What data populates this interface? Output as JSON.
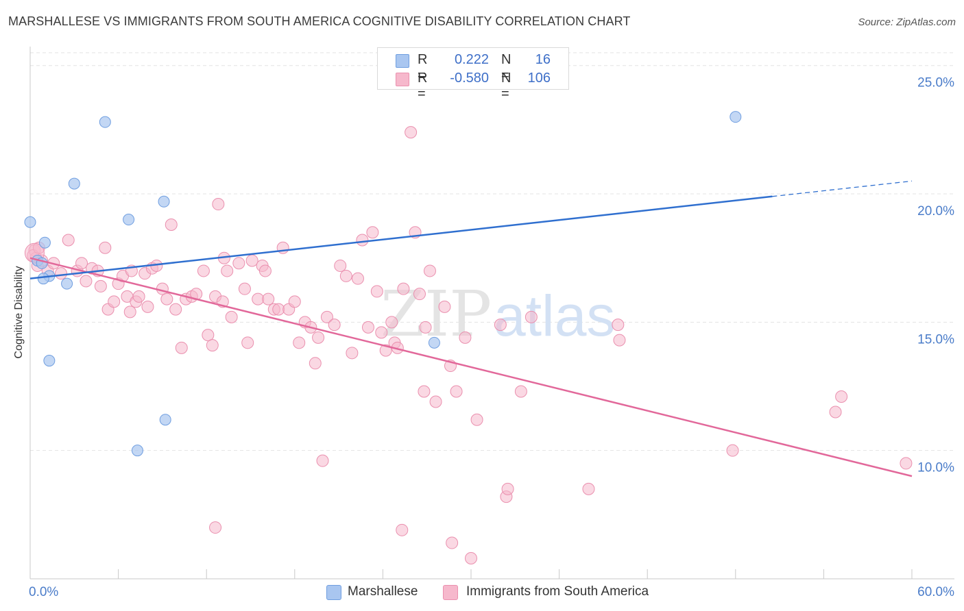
{
  "title": "MARSHALLESE VS IMMIGRANTS FROM SOUTH AMERICA COGNITIVE DISABILITY CORRELATION CHART",
  "source": "Source: ZipAtlas.com",
  "watermark": {
    "part1": "ZIP",
    "part2": "atlas"
  },
  "colors": {
    "blue_fill": "#a9c6f0",
    "blue_stroke": "#6f9ee0",
    "blue_line": "#2f6fcf",
    "pink_fill": "#f6b8cc",
    "pink_stroke": "#ea8fae",
    "pink_line": "#e2689a",
    "axis_text": "#4a7cc9",
    "grid": "#e3e3e3"
  },
  "stats": {
    "r_label": "R =",
    "n_label": "N =",
    "rows": [
      {
        "series": "Marshallese",
        "r": "0.222",
        "n": "16"
      },
      {
        "series": "Immigrants from South America",
        "r": "-0.580",
        "n": "106"
      }
    ]
  },
  "legend": [
    "Marshallese",
    "Immigrants from South America"
  ],
  "chart_data": {
    "type": "scatter",
    "title": "MARSHALLESE VS IMMIGRANTS FROM SOUTH AMERICA COGNITIVE DISABILITY CORRELATION CHART",
    "xlabel": "",
    "ylabel": "Cognitive Disability",
    "xlim": [
      0,
      60
    ],
    "ylim": [
      5,
      25.5
    ],
    "x_tick_labels": [
      {
        "value": 0,
        "label": "0.0%"
      },
      {
        "value": 60,
        "label": "60.0%"
      }
    ],
    "y_tick_labels": [
      {
        "value": 10,
        "label": "10.0%"
      },
      {
        "value": 15,
        "label": "15.0%"
      },
      {
        "value": 20,
        "label": "20.0%"
      },
      {
        "value": 25,
        "label": "25.0%"
      }
    ],
    "x_minor_ticks": [
      6,
      12,
      18,
      24,
      30,
      36,
      42,
      48,
      54
    ],
    "grid": true,
    "series": [
      {
        "name": "Marshallese",
        "points": [
          [
            0.0,
            18.9
          ],
          [
            0.5,
            17.4
          ],
          [
            1.0,
            18.1
          ],
          [
            0.8,
            17.3
          ],
          [
            1.3,
            16.8
          ],
          [
            0.9,
            16.7
          ],
          [
            2.5,
            16.5
          ],
          [
            5.1,
            22.8
          ],
          [
            3.0,
            20.4
          ],
          [
            9.1,
            19.7
          ],
          [
            6.7,
            19.0
          ],
          [
            1.3,
            13.5
          ],
          [
            9.2,
            11.2
          ],
          [
            7.3,
            10.0
          ],
          [
            27.5,
            14.2
          ],
          [
            48.0,
            23.0
          ]
        ],
        "trend": {
          "x": [
            0,
            50.5
          ],
          "y": [
            16.7,
            19.9
          ]
        },
        "trend_dashed": {
          "x": [
            50.5,
            60
          ],
          "y": [
            19.9,
            20.5
          ]
        }
      },
      {
        "name": "Immigrants from South America",
        "points": [
          [
            0.3,
            17.8
          ],
          [
            0.4,
            17.5
          ],
          [
            0.5,
            17.2
          ],
          [
            0.8,
            17.4
          ],
          [
            1.2,
            17.0
          ],
          [
            1.6,
            17.3
          ],
          [
            2.1,
            16.9
          ],
          [
            2.6,
            18.2
          ],
          [
            3.2,
            17.0
          ],
          [
            3.5,
            17.3
          ],
          [
            3.8,
            16.6
          ],
          [
            4.2,
            17.1
          ],
          [
            4.6,
            17.0
          ],
          [
            4.8,
            16.4
          ],
          [
            5.1,
            17.9
          ],
          [
            5.3,
            15.5
          ],
          [
            5.7,
            15.8
          ],
          [
            6.0,
            16.5
          ],
          [
            6.3,
            16.8
          ],
          [
            6.6,
            16.0
          ],
          [
            6.8,
            15.4
          ],
          [
            6.9,
            17.0
          ],
          [
            7.2,
            15.8
          ],
          [
            7.4,
            16.0
          ],
          [
            7.8,
            16.9
          ],
          [
            8.0,
            15.6
          ],
          [
            8.3,
            17.1
          ],
          [
            8.6,
            17.2
          ],
          [
            9.0,
            16.3
          ],
          [
            9.3,
            15.9
          ],
          [
            9.6,
            18.8
          ],
          [
            9.9,
            15.5
          ],
          [
            10.3,
            14.0
          ],
          [
            10.6,
            15.9
          ],
          [
            11.0,
            16.0
          ],
          [
            11.3,
            16.1
          ],
          [
            11.8,
            17.0
          ],
          [
            12.1,
            14.5
          ],
          [
            12.4,
            14.1
          ],
          [
            12.6,
            16.0
          ],
          [
            12.8,
            19.6
          ],
          [
            13.1,
            15.8
          ],
          [
            13.4,
            17.0
          ],
          [
            13.7,
            15.2
          ],
          [
            13.2,
            17.5
          ],
          [
            14.2,
            17.3
          ],
          [
            14.6,
            16.3
          ],
          [
            14.8,
            14.2
          ],
          [
            15.1,
            17.4
          ],
          [
            15.5,
            15.9
          ],
          [
            15.8,
            17.2
          ],
          [
            16.0,
            17.0
          ],
          [
            16.2,
            15.9
          ],
          [
            16.6,
            15.5
          ],
          [
            16.9,
            15.5
          ],
          [
            17.2,
            17.9
          ],
          [
            17.6,
            15.5
          ],
          [
            18.0,
            15.8
          ],
          [
            18.3,
            14.2
          ],
          [
            18.7,
            15.0
          ],
          [
            19.1,
            14.8
          ],
          [
            19.4,
            13.4
          ],
          [
            19.6,
            14.4
          ],
          [
            19.9,
            9.6
          ],
          [
            20.2,
            15.2
          ],
          [
            20.7,
            14.9
          ],
          [
            21.1,
            17.2
          ],
          [
            21.5,
            16.8
          ],
          [
            21.9,
            13.8
          ],
          [
            22.3,
            16.7
          ],
          [
            22.6,
            18.2
          ],
          [
            23.0,
            14.8
          ],
          [
            23.3,
            18.5
          ],
          [
            23.6,
            16.2
          ],
          [
            23.9,
            14.6
          ],
          [
            24.2,
            13.9
          ],
          [
            24.6,
            15.0
          ],
          [
            24.8,
            14.2
          ],
          [
            25.0,
            14.0
          ],
          [
            25.4,
            16.3
          ],
          [
            25.9,
            22.4
          ],
          [
            26.2,
            18.5
          ],
          [
            26.5,
            16.1
          ],
          [
            26.9,
            14.8
          ],
          [
            27.2,
            17.0
          ],
          [
            27.6,
            11.9
          ],
          [
            28.2,
            15.6
          ],
          [
            28.6,
            13.3
          ],
          [
            29.0,
            12.3
          ],
          [
            29.6,
            14.4
          ],
          [
            30.4,
            11.2
          ],
          [
            32.0,
            14.9
          ],
          [
            32.4,
            8.2
          ],
          [
            32.5,
            8.5
          ],
          [
            33.4,
            12.3
          ],
          [
            34.1,
            15.2
          ],
          [
            38.0,
            8.5
          ],
          [
            40.0,
            14.9
          ],
          [
            40.1,
            14.3
          ],
          [
            47.8,
            10.0
          ],
          [
            54.8,
            11.5
          ],
          [
            55.2,
            12.1
          ],
          [
            59.6,
            9.5
          ],
          [
            26.8,
            12.3
          ],
          [
            0.2,
            17.6
          ],
          [
            0.6,
            17.9
          ]
        ],
        "extra_points": [
          [
            12.6,
            7.0
          ],
          [
            25.3,
            6.9
          ],
          [
            28.7,
            6.4
          ],
          [
            30.0,
            5.8
          ]
        ],
        "trend": {
          "x": [
            0,
            60
          ],
          "y": [
            17.5,
            9.0
          ]
        }
      }
    ]
  }
}
